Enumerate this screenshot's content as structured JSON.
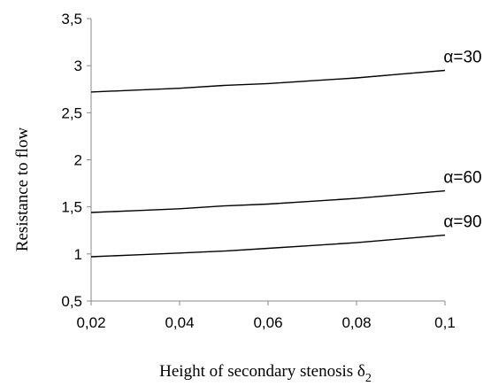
{
  "chart_data": {
    "type": "line",
    "xlabel": "Height of secondary stenosis δ",
    "xlabel_subscript": "2",
    "ylabel": "Resistance to flow",
    "xlim": [
      0.02,
      0.1
    ],
    "ylim": [
      0.5,
      3.5
    ],
    "x_ticks": [
      0.02,
      0.04,
      0.06,
      0.08,
      0.1
    ],
    "x_tick_labels": [
      "0,02",
      "0,04",
      "0,06",
      "0,08",
      "0,1"
    ],
    "y_ticks": [
      0.5,
      1,
      1.5,
      2,
      2.5,
      3,
      3.5
    ],
    "y_tick_labels": [
      "0,5",
      "1",
      "1,5",
      "2",
      "2,5",
      "3",
      "3,5"
    ],
    "grid": false,
    "x": [
      0.02,
      0.03,
      0.04,
      0.05,
      0.06,
      0.07,
      0.08,
      0.09,
      0.1
    ],
    "series": [
      {
        "name": "α=30",
        "values": [
          2.72,
          2.74,
          2.76,
          2.79,
          2.81,
          2.84,
          2.87,
          2.91,
          2.95
        ]
      },
      {
        "name": "α=60",
        "values": [
          1.44,
          1.46,
          1.48,
          1.51,
          1.53,
          1.56,
          1.59,
          1.63,
          1.67
        ]
      },
      {
        "name": "α=90",
        "values": [
          0.97,
          0.99,
          1.01,
          1.03,
          1.06,
          1.09,
          1.12,
          1.16,
          1.2
        ]
      }
    ],
    "line_color": "#000000"
  }
}
